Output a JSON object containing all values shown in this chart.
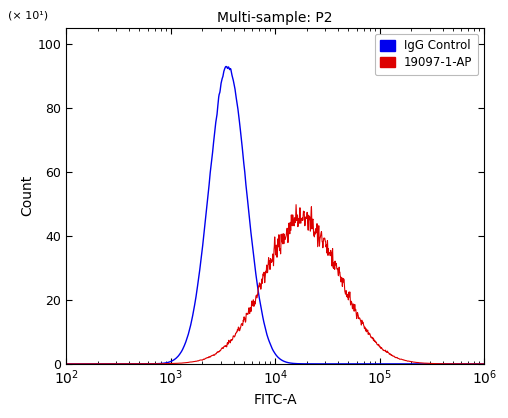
{
  "title": "Multi-sample: P2",
  "xlabel": "FITC-A",
  "ylabel": "Count",
  "ylabel_multiplier": "(× 10¹)",
  "xlim_log": [
    2,
    6
  ],
  "ylim": [
    0,
    105
  ],
  "blue_label": "IgG Control",
  "red_label": "19097-1-AP",
  "blue_color": "#0000EE",
  "red_color": "#DD0000",
  "blue_peak_log": 3.544,
  "blue_peak_y": 93,
  "blue_sigma": 0.175,
  "red_peak_log": 4.26,
  "red_peak_y": 45,
  "red_sigma": 0.36,
  "background_color": "#ffffff",
  "yticks": [
    0,
    20,
    40,
    60,
    80,
    100
  ],
  "n_points": 3000
}
